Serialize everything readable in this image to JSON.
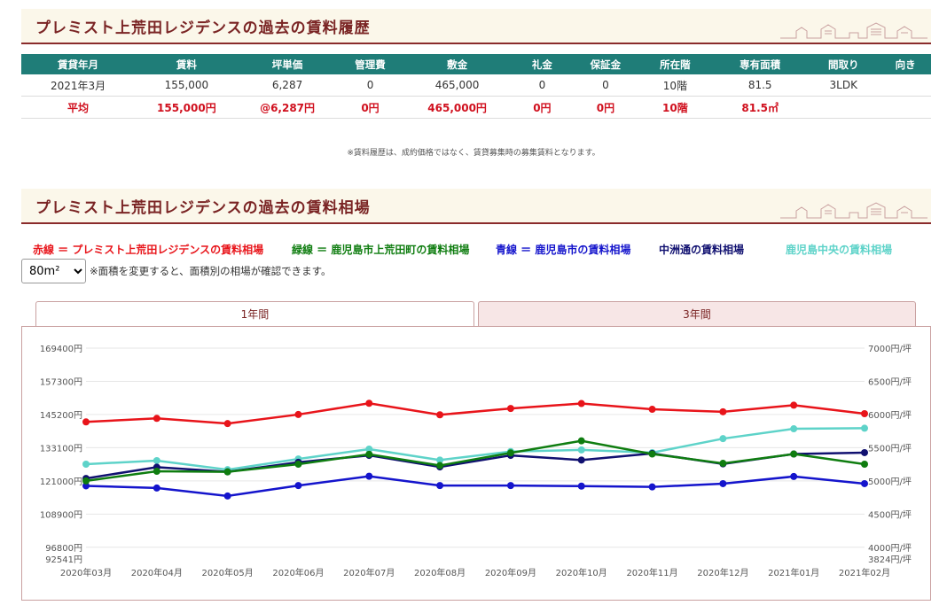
{
  "section1": {
    "title": "プレミスト上荒田レジデンスの過去の賃料履歴"
  },
  "history_table": {
    "headers": [
      "賃貸年月",
      "賃料",
      "坪単価",
      "管理費",
      "敷金",
      "礼金",
      "保証金",
      "所在階",
      "専有面積",
      "間取り",
      "向き"
    ],
    "rows": [
      [
        "2021年3月",
        "155,000",
        "6,287",
        "0",
        "465,000",
        "0",
        "0",
        "10階",
        "81.5",
        "3LDK",
        ""
      ]
    ],
    "average": [
      "平均",
      "155,000円",
      "@6,287円",
      "0円",
      "465,000円",
      "0円",
      "0円",
      "10階",
      "81.5㎡",
      "",
      ""
    ]
  },
  "note": "※賃料履歴は、成約価格ではなく、賃貸募集時の募集賃料となります。",
  "section2": {
    "title": "プレミスト上荒田レジデンスの過去の賃料相場"
  },
  "legend": {
    "red": "赤線 ＝ プレミスト上荒田レジデンスの賃料相場",
    "green": "緑線 ＝ 鹿児島市上荒田町の賃料相場",
    "blue": "青線 ＝ 鹿児島市の賃料相場",
    "navy": "中洲通の賃料相場",
    "cyan": "鹿児島中央の賃料相場"
  },
  "area_select": {
    "value": "80m²",
    "note": "※面積を変更すると、面積別の相場が確認できます。"
  },
  "tabs": {
    "tab1": "1年間",
    "tab2": "3年間"
  },
  "colors": {
    "red": "#e8141a",
    "green": "#0f7d10",
    "blue": "#1414cc",
    "navy": "#101070",
    "cyan": "#5ed3c9",
    "header_teal": "#1f7d78",
    "title_maroon": "#7a2424"
  },
  "chart_data": {
    "type": "line",
    "categories": [
      "2020年03月",
      "2020年04月",
      "2020年05月",
      "2020年06月",
      "2020年07月",
      "2020年08月",
      "2020年09月",
      "2020年10月",
      "2020年11月",
      "2020年12月",
      "2021年01月",
      "2021年02月"
    ],
    "series": [
      {
        "name": "赤線",
        "color": "#e8141a",
        "values": [
          142500,
          143800,
          141900,
          145200,
          149300,
          145100,
          147400,
          149200,
          147100,
          146200,
          148600,
          145500
        ]
      },
      {
        "name": "緑線",
        "color": "#0f7d10",
        "values": [
          121000,
          124500,
          124300,
          127100,
          130700,
          126600,
          131200,
          135600,
          130800,
          127400,
          130800,
          127100
        ]
      },
      {
        "name": "青線",
        "color": "#1414cc",
        "values": [
          119200,
          118400,
          115500,
          119300,
          122700,
          119300,
          119300,
          119100,
          118800,
          120000,
          122600,
          120000
        ]
      },
      {
        "name": "中洲通",
        "color": "#101070",
        "values": [
          121900,
          126000,
          124300,
          127800,
          130300,
          126100,
          130300,
          128600,
          131000,
          127200,
          130800,
          131300
        ]
      },
      {
        "name": "鹿児島中央",
        "color": "#5ed3c9",
        "values": [
          127100,
          128400,
          125100,
          129000,
          132600,
          128600,
          131700,
          132300,
          131300,
          136400,
          140000,
          140200
        ]
      }
    ],
    "y_ticks": [
      "169400円",
      "157300円",
      "145200円",
      "133100円",
      "121000円",
      "108900円",
      "96800円",
      "92541円"
    ],
    "y_tick_values": [
      169400,
      157300,
      145200,
      133100,
      121000,
      108900,
      96800,
      92541
    ],
    "y2_ticks": [
      "7000円/坪",
      "6500円/坪",
      "6000円/坪",
      "5500円/坪",
      "5000円/坪",
      "4500円/坪",
      "4000円/坪",
      "3824円/坪"
    ],
    "ylim": [
      92541,
      169400
    ],
    "grid": true
  }
}
